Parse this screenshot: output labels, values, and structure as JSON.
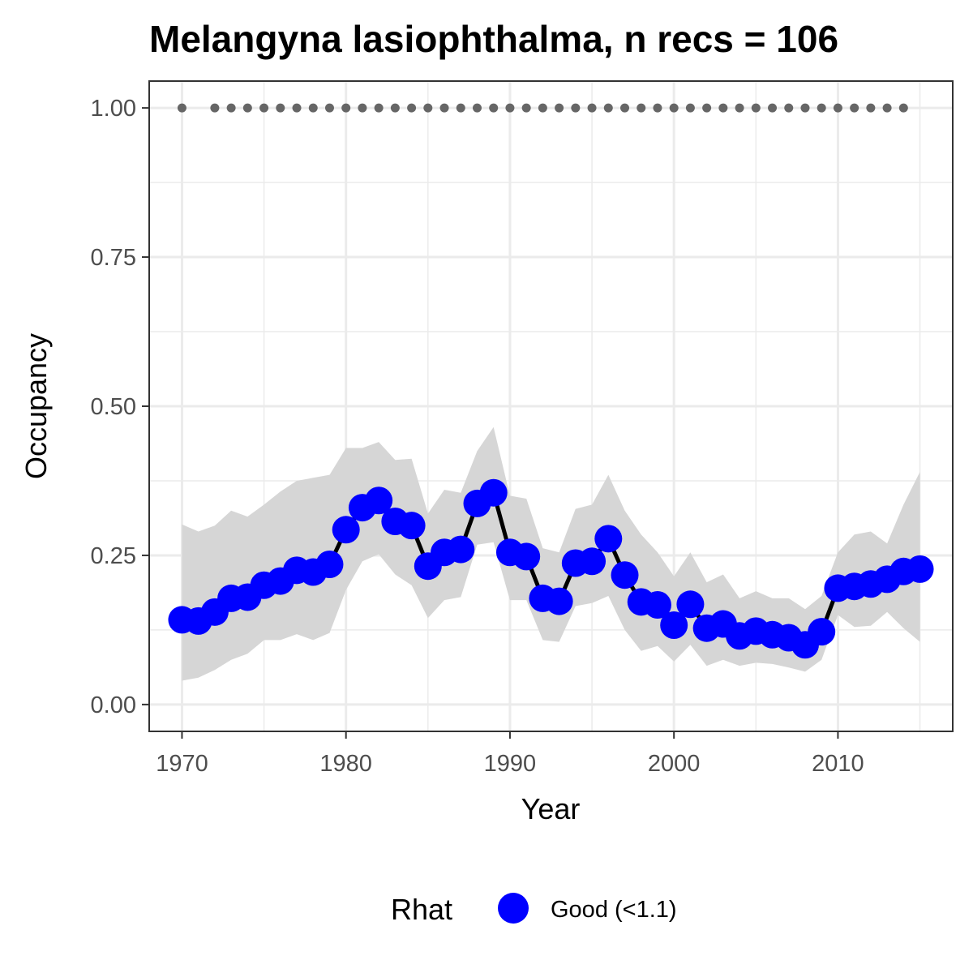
{
  "chart_data": {
    "type": "line",
    "title": "Melangyna lasiophthalma, n recs = 106",
    "xlabel": "Year",
    "ylabel": "Occupancy",
    "xlim": [
      1968,
      2017
    ],
    "ylim": [
      -0.045,
      1.045
    ],
    "x_ticks": [
      1970,
      1980,
      1990,
      2000,
      2010
    ],
    "y_ticks": [
      0.0,
      0.25,
      0.5,
      0.75,
      1.0
    ],
    "y_tick_labels": [
      "0.00",
      "0.25",
      "0.50",
      "0.75",
      "1.00"
    ],
    "grid": true,
    "legend_position": "bottom",
    "legend": {
      "title": "Rhat",
      "entries": [
        "Good (<1.1)"
      ]
    },
    "colors": {
      "points": "#0000ff",
      "line": "#000000",
      "ribbon": "#d6d6d6",
      "records": "#666666",
      "grid": "#ebebeb",
      "panel_border": "#333333"
    },
    "series": [
      {
        "name": "Good (<1.1)",
        "x": [
          1970,
          1971,
          1972,
          1973,
          1974,
          1975,
          1976,
          1977,
          1978,
          1979,
          1980,
          1981,
          1982,
          1983,
          1984,
          1985,
          1986,
          1987,
          1988,
          1989,
          1990,
          1991,
          1992,
          1993,
          1994,
          1995,
          1996,
          1997,
          1998,
          1999,
          2000,
          2001,
          2002,
          2003,
          2004,
          2005,
          2006,
          2007,
          2008,
          2009,
          2010,
          2011,
          2012,
          2013,
          2014,
          2015
        ],
        "values": [
          0.142,
          0.14,
          0.155,
          0.178,
          0.18,
          0.2,
          0.207,
          0.225,
          0.222,
          0.235,
          0.293,
          0.33,
          0.342,
          0.307,
          0.3,
          0.232,
          0.255,
          0.26,
          0.337,
          0.355,
          0.255,
          0.248,
          0.178,
          0.173,
          0.237,
          0.24,
          0.278,
          0.217,
          0.172,
          0.167,
          0.133,
          0.168,
          0.128,
          0.135,
          0.115,
          0.123,
          0.117,
          0.112,
          0.1,
          0.122,
          0.195,
          0.198,
          0.202,
          0.21,
          0.223,
          0.227
        ],
        "lower": [
          0.04,
          0.045,
          0.058,
          0.075,
          0.085,
          0.108,
          0.108,
          0.118,
          0.108,
          0.12,
          0.192,
          0.24,
          0.252,
          0.218,
          0.2,
          0.145,
          0.175,
          0.18,
          0.268,
          0.272,
          0.175,
          0.175,
          0.108,
          0.105,
          0.165,
          0.17,
          0.182,
          0.125,
          0.09,
          0.098,
          0.072,
          0.1,
          0.065,
          0.075,
          0.065,
          0.07,
          0.068,
          0.062,
          0.055,
          0.075,
          0.15,
          0.13,
          0.132,
          0.155,
          0.128,
          0.105
        ],
        "upper": [
          0.302,
          0.29,
          0.3,
          0.325,
          0.315,
          0.335,
          0.357,
          0.375,
          0.38,
          0.385,
          0.43,
          0.43,
          0.44,
          0.41,
          0.412,
          0.32,
          0.36,
          0.355,
          0.425,
          0.465,
          0.35,
          0.345,
          0.262,
          0.255,
          0.328,
          0.335,
          0.385,
          0.325,
          0.285,
          0.255,
          0.215,
          0.255,
          0.205,
          0.218,
          0.178,
          0.19,
          0.178,
          0.178,
          0.16,
          0.182,
          0.255,
          0.285,
          0.29,
          0.27,
          0.335,
          0.39
        ]
      }
    ],
    "record_years": [
      1970,
      1972,
      1973,
      1974,
      1975,
      1976,
      1977,
      1978,
      1979,
      1980,
      1981,
      1982,
      1983,
      1984,
      1985,
      1986,
      1987,
      1988,
      1989,
      1990,
      1991,
      1992,
      1993,
      1994,
      1995,
      1996,
      1997,
      1998,
      1999,
      2000,
      2001,
      2002,
      2003,
      2004,
      2005,
      2006,
      2007,
      2008,
      2009,
      2010,
      2011,
      2012,
      2013,
      2014
    ],
    "record_value": 1.0
  }
}
